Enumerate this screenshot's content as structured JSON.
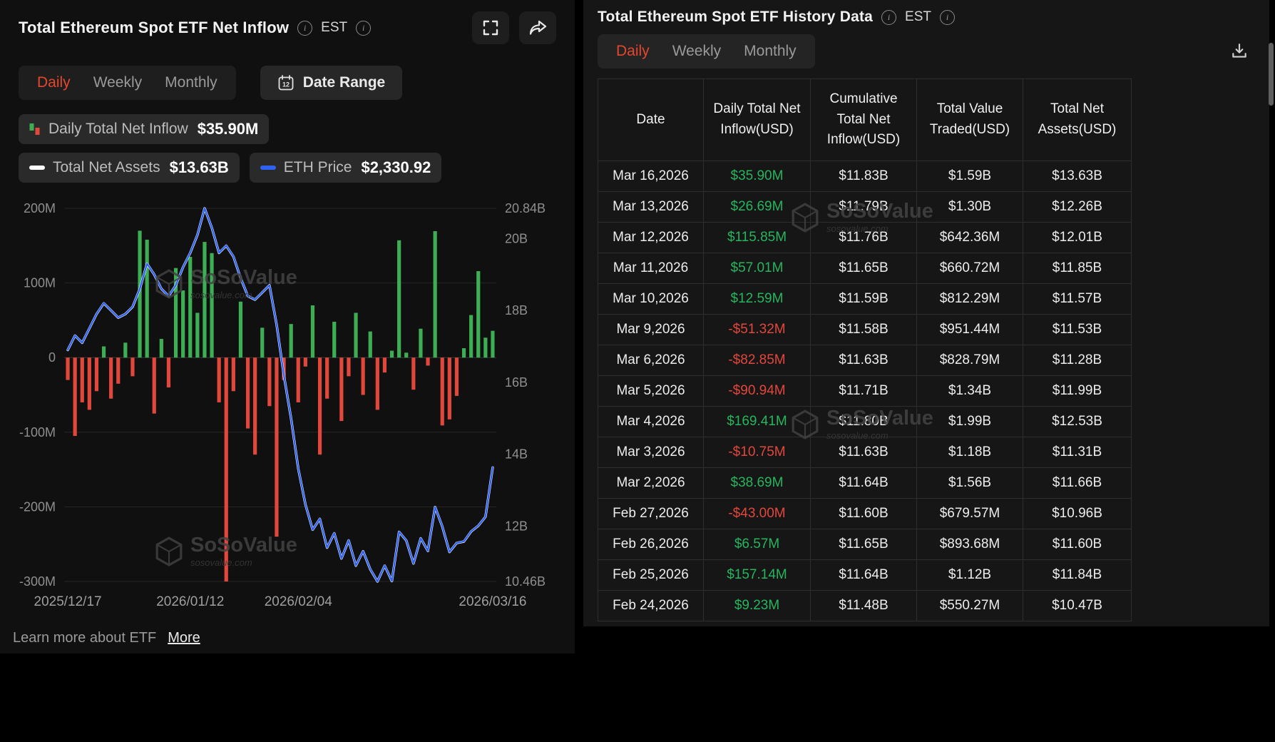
{
  "brand": {
    "watermark_name": "SoSoValue",
    "watermark_domain": "sosovalue.com"
  },
  "colors": {
    "accent_orange": "#E5472D",
    "green": "#26B55E",
    "red": "#E2473C",
    "bar_green": "#3DAE54",
    "bar_red": "#E2473C",
    "white_line": "#FFFFFF",
    "blue_line": "#2F62F0"
  },
  "left_panel": {
    "title": "Total Ethereum Spot ETF Net Inflow",
    "est_label": "EST",
    "tabs": {
      "items": [
        "Daily",
        "Weekly",
        "Monthly"
      ],
      "active": "Daily"
    },
    "date_range": {
      "label": "Date Range",
      "icon_day": "12"
    },
    "legend": {
      "inflow": {
        "label": "Daily Total Net Inflow",
        "value": "$35.90M"
      },
      "assets": {
        "label": "Total Net Assets",
        "value": "$13.63B"
      },
      "price": {
        "label": "ETH Price",
        "value": "$2,330.92"
      }
    },
    "footer": {
      "text": "Learn more about ETF",
      "link_label": "More"
    }
  },
  "right_panel": {
    "title": "Total Ethereum Spot ETF History Data",
    "est_label": "EST",
    "tabs": {
      "items": [
        "Daily",
        "Weekly",
        "Monthly"
      ],
      "active": "Daily"
    },
    "table": {
      "columns": [
        "Date",
        "Daily Total Net Inflow(USD)",
        "Cumulative Total Net Inflow(USD)",
        "Total Value Traded(USD)",
        "Total Net Assets(USD)"
      ],
      "rows": [
        [
          "Mar 16,2026",
          "$35.90M",
          "$11.83B",
          "$1.59B",
          "$13.63B"
        ],
        [
          "Mar 13,2026",
          "$26.69M",
          "$11.79B",
          "$1.30B",
          "$12.26B"
        ],
        [
          "Mar 12,2026",
          "$115.85M",
          "$11.76B",
          "$642.36M",
          "$12.01B"
        ],
        [
          "Mar 11,2026",
          "$57.01M",
          "$11.65B",
          "$660.72M",
          "$11.85B"
        ],
        [
          "Mar 10,2026",
          "$12.59M",
          "$11.59B",
          "$812.29M",
          "$11.57B"
        ],
        [
          "Mar 9,2026",
          "-$51.32M",
          "$11.58B",
          "$951.44M",
          "$11.53B"
        ],
        [
          "Mar 6,2026",
          "-$82.85M",
          "$11.63B",
          "$828.79M",
          "$11.28B"
        ],
        [
          "Mar 5,2026",
          "-$90.94M",
          "$11.71B",
          "$1.34B",
          "$11.99B"
        ],
        [
          "Mar 4,2026",
          "$169.41M",
          "$11.80B",
          "$1.99B",
          "$12.53B"
        ],
        [
          "Mar 3,2026",
          "-$10.75M",
          "$11.63B",
          "$1.18B",
          "$11.31B"
        ],
        [
          "Mar 2,2026",
          "$38.69M",
          "$11.64B",
          "$1.56B",
          "$11.66B"
        ],
        [
          "Feb 27,2026",
          "-$43.00M",
          "$11.60B",
          "$679.57M",
          "$10.96B"
        ],
        [
          "Feb 26,2026",
          "$6.57M",
          "$11.65B",
          "$893.68M",
          "$11.60B"
        ],
        [
          "Feb 25,2026",
          "$157.14M",
          "$11.64B",
          "$1.12B",
          "$11.84B"
        ],
        [
          "Feb 24,2026",
          "$9.23M",
          "$11.48B",
          "$550.27M",
          "$10.47B"
        ]
      ]
    }
  },
  "chart_data": {
    "type": "bar",
    "subtype": "bar+line combo (daily net inflow bars, net-assets and ETH price lines)",
    "title": "Total Ethereum Spot ETF Net Inflow",
    "x_tick_labels": [
      "2025/12/17",
      "2026/01/12",
      "2026/02/04",
      "2026/03/16"
    ],
    "x_tick_indices": [
      0,
      17,
      32,
      59
    ],
    "left_axis": {
      "label": "Daily Net Inflow (USD millions)",
      "ylim": [
        -300,
        200
      ],
      "ticks": [
        {
          "label": "200M",
          "value": 200
        },
        {
          "label": "100M",
          "value": 100
        },
        {
          "label": "0",
          "value": 0
        },
        {
          "label": "-100M",
          "value": -100
        },
        {
          "label": "-200M",
          "value": -200
        },
        {
          "label": "-300M",
          "value": -300
        }
      ]
    },
    "right_axis": {
      "label": "Total Net Assets (USD billions)",
      "ylim": [
        10.46,
        20.84
      ],
      "ticks": [
        {
          "label": "20.84B",
          "value": 20.84
        },
        {
          "label": "20B",
          "value": 20
        },
        {
          "label": "18B",
          "value": 18
        },
        {
          "label": "16B",
          "value": 16
        },
        {
          "label": "14B",
          "value": 14
        },
        {
          "label": "12B",
          "value": 12
        },
        {
          "label": "10.46B",
          "value": 10.46
        }
      ]
    },
    "bars": {
      "name": "Daily Total Net Inflow (USD millions, last 15 from table, earlier estimated)",
      "values": [
        -30,
        -105,
        -60,
        -70,
        -45,
        15,
        -55,
        -35,
        20,
        -25,
        170,
        158,
        -75,
        25,
        -40,
        120,
        90,
        135,
        60,
        155,
        140,
        -60,
        -300,
        -45,
        75,
        -95,
        -130,
        40,
        -65,
        -240,
        -30,
        45,
        -60,
        -12,
        70,
        -130,
        -55,
        48,
        -85,
        -25,
        60,
        -50,
        35,
        -70,
        -20,
        9.23,
        157.14,
        6.57,
        -43,
        38.69,
        -10.75,
        169.41,
        -90.94,
        -82.85,
        -51.32,
        12.59,
        57.01,
        115.85,
        26.69,
        35.9
      ]
    },
    "lines": [
      {
        "name": "Total Net Assets (USD billions)",
        "color_key": "white_line",
        "ylim": [
          10.46,
          20.84
        ],
        "values": [
          16.9,
          17.3,
          17.1,
          17.5,
          17.9,
          18.2,
          18,
          17.8,
          17.9,
          18.1,
          18.6,
          19.3,
          19,
          18.6,
          18.4,
          18.7,
          19.2,
          19.6,
          20.1,
          20.84,
          20.3,
          19.6,
          19.8,
          19.5,
          18.9,
          18.4,
          18.3,
          18.5,
          18.7,
          17.6,
          16.2,
          15,
          13.6,
          12.6,
          11.9,
          12.2,
          11.4,
          11.8,
          11.1,
          11.6,
          10.9,
          11.3,
          10.8,
          10.46,
          10.9,
          10.47,
          11.84,
          11.6,
          10.96,
          11.66,
          11.31,
          12.53,
          11.99,
          11.28,
          11.53,
          11.57,
          11.85,
          12.01,
          12.26,
          13.63
        ]
      },
      {
        "name": "ETH Price (USD, estimated track ending 2330.92)",
        "color_key": "blue_line",
        "ylim": [
          1787,
          3567
        ],
        "values": [
          2892,
          2960,
          2926,
          2995,
          3063,
          3115,
          3080,
          3046,
          3063,
          3098,
          3183,
          3303,
          3252,
          3183,
          3149,
          3200,
          3286,
          3355,
          3441,
          3567,
          3475,
          3355,
          3389,
          3338,
          3235,
          3149,
          3132,
          3166,
          3200,
          3012,
          2772,
          2566,
          2326,
          2154,
          2034,
          2086,
          1949,
          2017,
          1897,
          1983,
          1863,
          1931,
          1846,
          1787,
          1863,
          1789,
          2024,
          1983,
          1873,
          1993,
          1933,
          2142,
          2050,
          1928,
          1971,
          1978,
          2026,
          2053,
          2096,
          2330.92
        ]
      }
    ],
    "grid": "horizontal gridlines at left-axis ticks",
    "legend_position": "top-left chips"
  }
}
